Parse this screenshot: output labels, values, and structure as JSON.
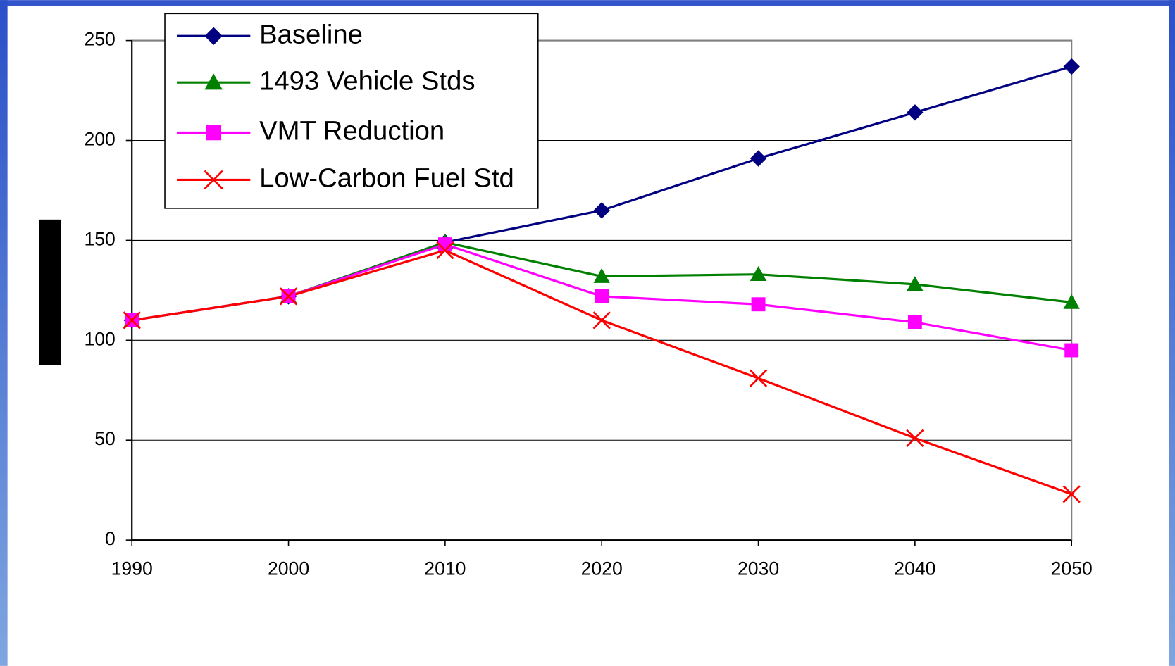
{
  "chart_data": {
    "type": "line",
    "x": [
      1990,
      2000,
      2010,
      2020,
      2030,
      2040,
      2050
    ],
    "series": [
      {
        "name": "Baseline",
        "color": "#000080",
        "marker": "diamond",
        "values": [
          110,
          122,
          149,
          165,
          191,
          214,
          237
        ]
      },
      {
        "name": "1493 Vehicle Stds",
        "color": "#008000",
        "marker": "triangle",
        "values": [
          110,
          122,
          149,
          132,
          133,
          128,
          119
        ]
      },
      {
        "name": "VMT Reduction",
        "color": "#ff00ff",
        "marker": "square",
        "values": [
          110,
          122,
          148,
          122,
          118,
          109,
          95
        ]
      },
      {
        "name": "Low-Carbon Fuel Std",
        "color": "#ff0000",
        "marker": "x",
        "values": [
          110,
          122,
          145,
          110,
          81,
          51,
          23
        ]
      }
    ],
    "xlim": [
      1990,
      2050
    ],
    "xticks": [
      1990,
      2000,
      2010,
      2020,
      2030,
      2040,
      2050
    ],
    "ylim": [
      0,
      250
    ],
    "yticks": [
      0,
      50,
      100,
      150,
      200,
      250
    ],
    "grid": true,
    "legend": "top-left"
  }
}
